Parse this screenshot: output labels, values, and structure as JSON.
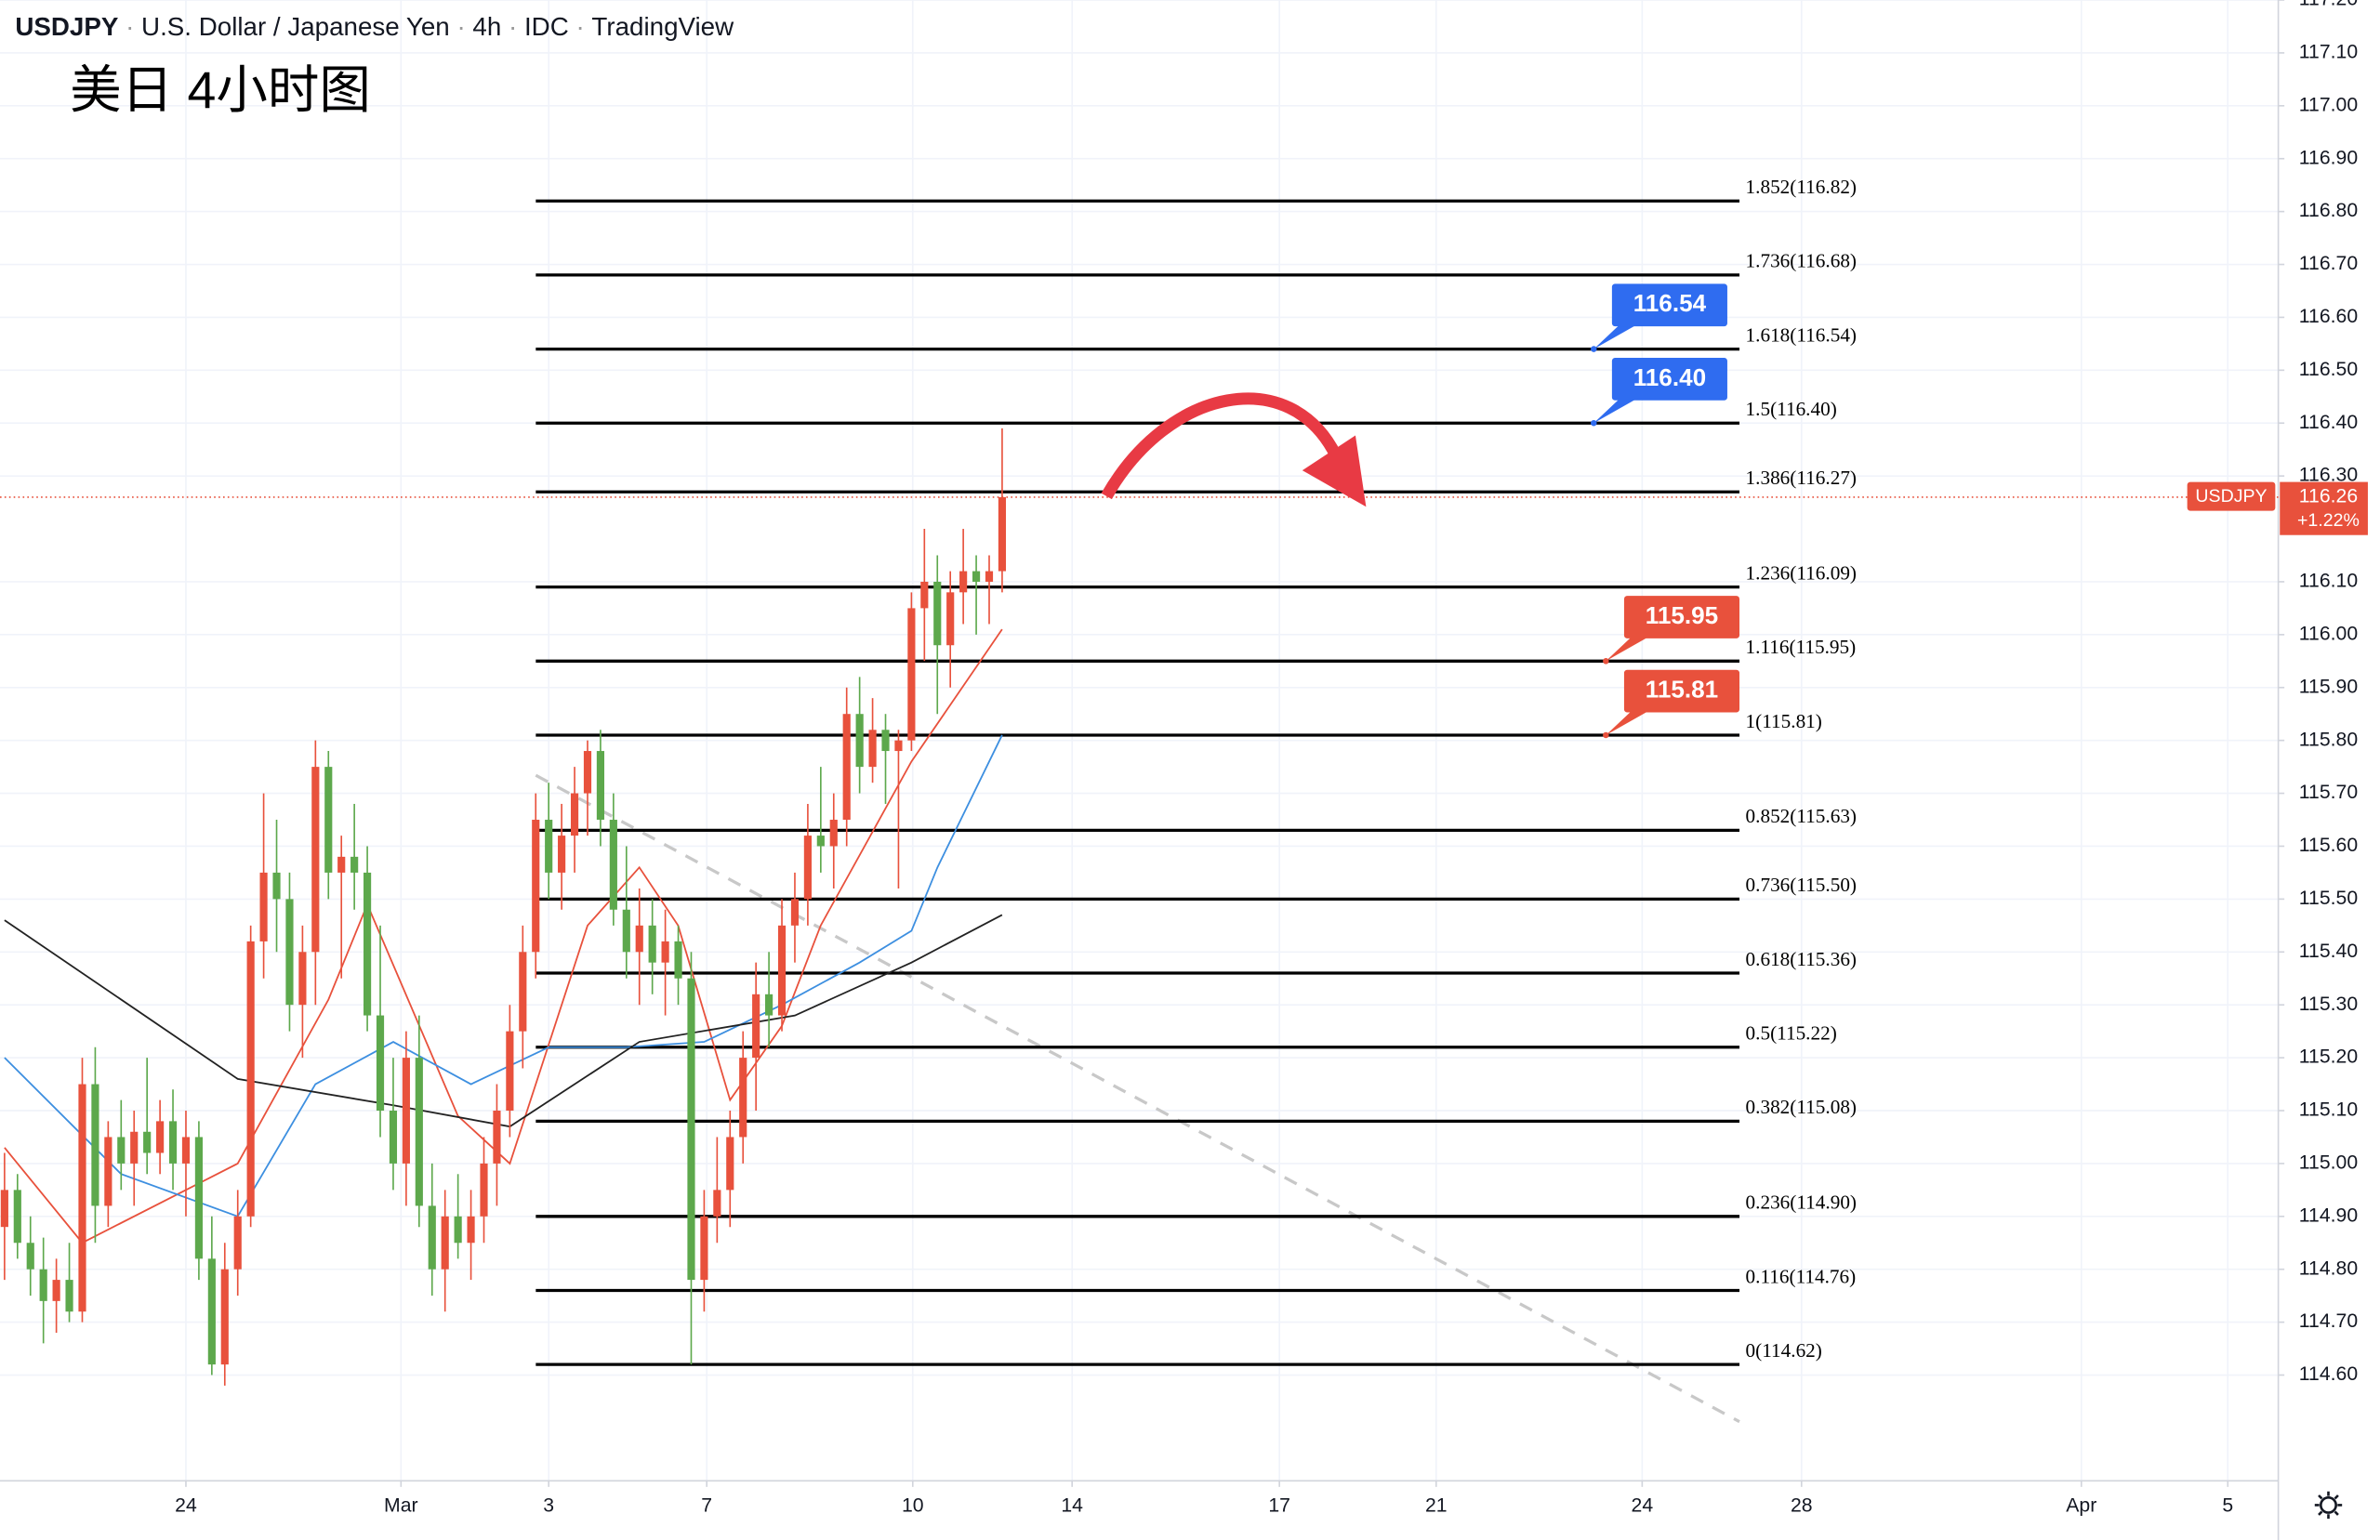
{
  "header": {
    "symbol": "USDJPY",
    "name": "U.S. Dollar / Japanese Yen",
    "interval": "4h",
    "source": "IDC",
    "platform": "TradingView"
  },
  "chart_data": {
    "type": "candlestick",
    "title": "美日 4小时图",
    "up_color": "#e8513c",
    "down_color": "#5da84c",
    "open": [
      114.88,
      114.95,
      114.85,
      114.8,
      114.74,
      114.78,
      114.72,
      115.15,
      114.92,
      115.05,
      115.0,
      115.06,
      115.02,
      115.08,
      115.0,
      115.05,
      114.82,
      114.62,
      114.8,
      114.9,
      115.42,
      115.55,
      115.5,
      115.3,
      115.4,
      115.75,
      115.55,
      115.58,
      115.55,
      115.28,
      115.1,
      115.0,
      115.2,
      114.92,
      114.8,
      114.9,
      114.85,
      114.9,
      115.0,
      115.1,
      115.25,
      115.4,
      115.65,
      115.55,
      115.62,
      115.7,
      115.78,
      115.65,
      115.48,
      115.4,
      115.45,
      115.38,
      115.42,
      115.35,
      114.78,
      114.9,
      114.95,
      115.05,
      115.2,
      115.32,
      115.28,
      115.45,
      115.5,
      115.62,
      115.6,
      115.65,
      115.85,
      115.75,
      115.82,
      115.78,
      115.8,
      116.05,
      116.1,
      115.98,
      116.08,
      116.12,
      116.1,
      116.12
    ],
    "high": [
      115.02,
      114.98,
      114.9,
      114.86,
      114.82,
      114.85,
      115.2,
      115.22,
      115.08,
      115.12,
      115.1,
      115.2,
      115.12,
      115.14,
      115.1,
      115.08,
      114.9,
      114.85,
      114.95,
      115.45,
      115.7,
      115.65,
      115.55,
      115.45,
      115.8,
      115.78,
      115.62,
      115.68,
      115.6,
      115.45,
      115.2,
      115.25,
      115.28,
      115.0,
      114.95,
      114.98,
      114.95,
      115.05,
      115.15,
      115.3,
      115.45,
      115.7,
      115.72,
      115.68,
      115.75,
      115.8,
      115.82,
      115.7,
      115.6,
      115.52,
      115.5,
      115.48,
      115.45,
      115.4,
      114.95,
      115.05,
      115.1,
      115.25,
      115.38,
      115.4,
      115.5,
      115.55,
      115.68,
      115.75,
      115.7,
      115.9,
      115.92,
      115.88,
      115.85,
      115.82,
      116.08,
      116.2,
      116.15,
      116.12,
      116.2,
      116.15,
      116.15,
      116.39
    ],
    "low": [
      114.78,
      114.82,
      114.75,
      114.66,
      114.68,
      114.7,
      114.7,
      114.85,
      114.88,
      114.95,
      114.92,
      114.98,
      114.98,
      114.95,
      114.9,
      114.78,
      114.6,
      114.58,
      114.75,
      114.88,
      115.35,
      115.4,
      115.25,
      115.2,
      115.3,
      115.5,
      115.35,
      115.48,
      115.25,
      115.05,
      114.95,
      114.92,
      114.88,
      114.75,
      114.72,
      114.82,
      114.78,
      114.85,
      114.92,
      115.05,
      115.18,
      115.35,
      115.5,
      115.48,
      115.55,
      115.62,
      115.6,
      115.45,
      115.35,
      115.3,
      115.32,
      115.28,
      115.3,
      114.62,
      114.72,
      114.85,
      114.88,
      115.0,
      115.1,
      115.22,
      115.25,
      115.38,
      115.45,
      115.55,
      115.52,
      115.6,
      115.7,
      115.72,
      115.68,
      115.52,
      115.78,
      115.95,
      115.85,
      115.9,
      116.02,
      116.0,
      116.02,
      116.08
    ],
    "close": [
      114.95,
      114.85,
      114.8,
      114.74,
      114.78,
      114.72,
      115.15,
      114.92,
      115.05,
      115.0,
      115.06,
      115.02,
      115.08,
      115.0,
      115.05,
      114.82,
      114.62,
      114.8,
      114.9,
      115.42,
      115.55,
      115.5,
      115.3,
      115.4,
      115.75,
      115.55,
      115.58,
      115.55,
      115.28,
      115.1,
      115.0,
      115.2,
      114.92,
      114.8,
      114.9,
      114.85,
      114.9,
      115.0,
      115.1,
      115.25,
      115.4,
      115.65,
      115.55,
      115.62,
      115.7,
      115.78,
      115.65,
      115.48,
      115.4,
      115.45,
      115.38,
      115.42,
      115.35,
      114.78,
      114.9,
      114.95,
      115.05,
      115.2,
      115.32,
      115.28,
      115.45,
      115.5,
      115.62,
      115.6,
      115.65,
      115.85,
      115.75,
      115.82,
      115.78,
      115.8,
      116.05,
      116.1,
      115.98,
      116.08,
      116.12,
      116.1,
      116.12,
      116.26
    ],
    "moving_averages": [
      {
        "color": "#e8513c",
        "x": [
          0,
          6,
          18,
          25,
          28,
          35,
          39,
          45,
          49,
          52,
          56,
          60,
          63,
          70,
          77
        ],
        "values": [
          115.03,
          114.85,
          115.0,
          115.31,
          115.49,
          115.09,
          115.0,
          115.45,
          115.56,
          115.45,
          115.12,
          115.26,
          115.45,
          115.76,
          116.01
        ]
      },
      {
        "color": "#3d8fe0",
        "x": [
          0,
          9,
          18,
          24,
          30,
          36,
          42,
          48,
          54,
          60,
          66,
          70,
          72,
          77
        ],
        "values": [
          115.2,
          114.98,
          114.9,
          115.15,
          115.23,
          115.15,
          115.22,
          115.22,
          115.23,
          115.3,
          115.38,
          115.44,
          115.56,
          115.81
        ]
      },
      {
        "color": "#222222",
        "x": [
          0,
          18,
          30,
          39,
          49,
          61,
          70,
          77
        ],
        "values": [
          115.46,
          115.16,
          115.11,
          115.07,
          115.23,
          115.28,
          115.38,
          115.47
        ]
      }
    ],
    "fib_levels": [
      {
        "value": 116.82,
        "label": "1.852(116.82)"
      },
      {
        "value": 116.68,
        "label": "1.736(116.68)"
      },
      {
        "value": 116.54,
        "label": "1.618(116.54)"
      },
      {
        "value": 116.4,
        "label": "1.5(116.40)"
      },
      {
        "value": 116.27,
        "label": "1.386(116.27)"
      },
      {
        "value": 116.09,
        "label": "1.236(116.09)"
      },
      {
        "value": 115.95,
        "label": "1.116(115.95)"
      },
      {
        "value": 115.81,
        "label": "1(115.81)"
      },
      {
        "value": 115.63,
        "label": "0.852(115.63)"
      },
      {
        "value": 115.5,
        "label": "0.736(115.50)"
      },
      {
        "value": 115.36,
        "label": "0.618(115.36)"
      },
      {
        "value": 115.22,
        "label": "0.5(115.22)"
      },
      {
        "value": 115.08,
        "label": "0.382(115.08)"
      },
      {
        "value": 114.9,
        "label": "0.236(114.90)"
      },
      {
        "value": 114.76,
        "label": "0.116(114.76)"
      },
      {
        "value": 114.62,
        "label": "0(114.62)"
      }
    ],
    "price_callouts": [
      {
        "value": 116.54,
        "label": "116.54",
        "color": "#2f6cf0"
      },
      {
        "value": 116.4,
        "label": "116.40",
        "color": "#2f6cf0"
      },
      {
        "value": 115.95,
        "label": "115.95",
        "color": "#e8513c"
      },
      {
        "value": 115.81,
        "label": "115.81",
        "color": "#e8513c"
      }
    ],
    "price_tag": {
      "symbol": "USDJPY",
      "value": 116.26,
      "change": "+1.22%",
      "color": "#e8513c"
    },
    "xlim": [
      -0.35,
      175.5
    ],
    "xticks": [
      {
        "value": 14,
        "label": "24"
      },
      {
        "value": 30.6,
        "label": "Mar"
      },
      {
        "value": 42,
        "label": "3"
      },
      {
        "value": 54.2,
        "label": "7"
      },
      {
        "value": 70.1,
        "label": "10"
      },
      {
        "value": 82.4,
        "label": "14"
      },
      {
        "value": 98.4,
        "label": "17"
      },
      {
        "value": 110.5,
        "label": "21"
      },
      {
        "value": 126.4,
        "label": "24"
      },
      {
        "value": 138.7,
        "label": "28"
      },
      {
        "value": 160.3,
        "label": "Apr"
      },
      {
        "value": 171.6,
        "label": "5"
      }
    ],
    "ylim": [
      114.4,
      117.2
    ],
    "yticks": [
      {
        "value": 117.2,
        "label": "117.20"
      },
      {
        "value": 117.1,
        "label": "117.10"
      },
      {
        "value": 117,
        "label": "117.00"
      },
      {
        "value": 116.9,
        "label": "116.90"
      },
      {
        "value": 116.8,
        "label": "116.80"
      },
      {
        "value": 116.7,
        "label": "116.70"
      },
      {
        "value": 116.6,
        "label": "116.60"
      },
      {
        "value": 116.5,
        "label": "116.50"
      },
      {
        "value": 116.4,
        "label": "116.40"
      },
      {
        "value": 116.3,
        "label": "116.30"
      },
      {
        "value": 116.1,
        "label": "116.10"
      },
      {
        "value": 116,
        "label": "116.00"
      },
      {
        "value": 115.9,
        "label": "115.90"
      },
      {
        "value": 115.8,
        "label": "115.80"
      },
      {
        "value": 115.7,
        "label": "115.70"
      },
      {
        "value": 115.6,
        "label": "115.60"
      },
      {
        "value": 115.5,
        "label": "115.50"
      },
      {
        "value": 115.4,
        "label": "115.40"
      },
      {
        "value": 115.3,
        "label": "115.30"
      },
      {
        "value": 115.2,
        "label": "115.20"
      },
      {
        "value": 115.1,
        "label": "115.10"
      },
      {
        "value": 115,
        "label": "115.00"
      },
      {
        "value": 114.9,
        "label": "114.90"
      },
      {
        "value": 114.8,
        "label": "114.80"
      },
      {
        "value": 114.7,
        "label": "114.70"
      },
      {
        "value": 114.6,
        "label": "114.60"
      }
    ],
    "grid": true
  }
}
